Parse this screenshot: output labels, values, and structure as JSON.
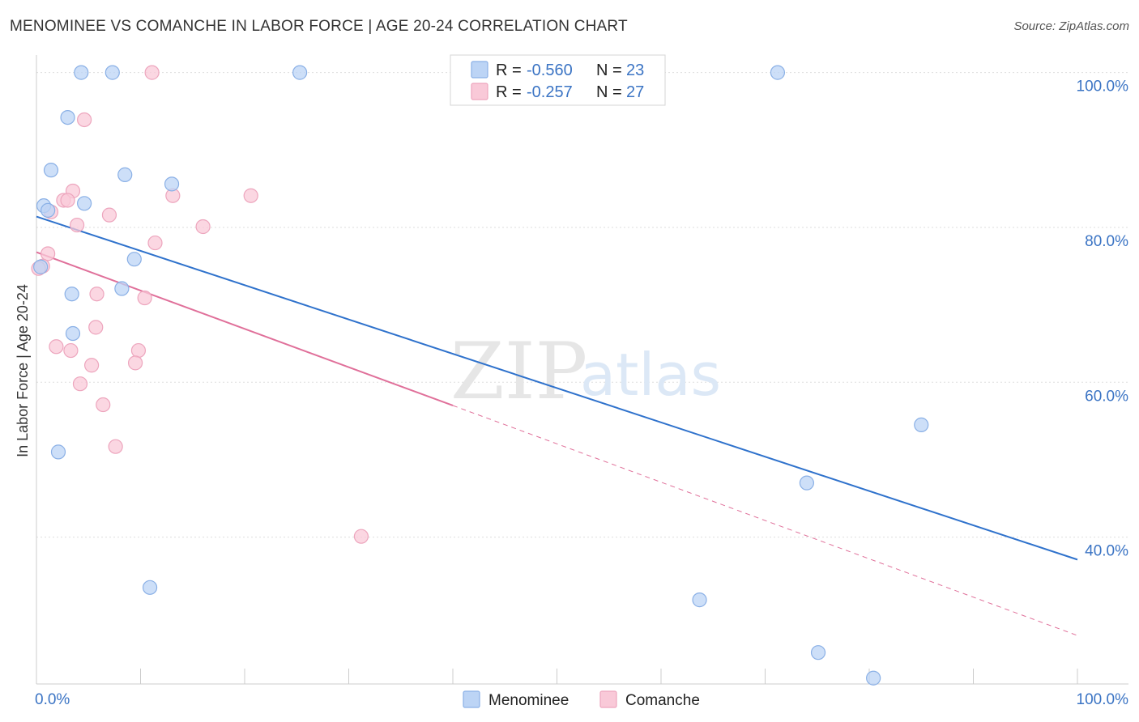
{
  "title": "MENOMINEE VS COMANCHE IN LABOR FORCE | AGE 20-24 CORRELATION CHART",
  "source": "Source: ZipAtlas.com",
  "watermark": {
    "zip": "ZIP",
    "atlas": "atlas"
  },
  "colors": {
    "menominee_fill": "#bcd4f5",
    "menominee_stroke": "#8ab0e6",
    "menominee_line": "#2f72cc",
    "comanche_fill": "#f9c9d8",
    "comanche_stroke": "#eda5bd",
    "comanche_line": "#e0709a",
    "grid": "#dddddd",
    "axis_text": "#3b74c4"
  },
  "legend": {
    "rows": [
      {
        "series": "Menominee",
        "r_label": "R = ",
        "r_value": "-0.560",
        "n_label": "N = ",
        "n_value": "23"
      },
      {
        "series": "Comanche",
        "r_label": "R = ",
        "r_value": "-0.257",
        "n_label": "N = ",
        "n_value": "27"
      }
    ]
  },
  "chart_data": {
    "type": "scatter",
    "title": "MENOMINEE VS COMANCHE IN LABOR FORCE | AGE 20-24 CORRELATION CHART",
    "xlabel": "",
    "ylabel": "In Labor Force | Age 20-24",
    "xlim": [
      0,
      100
    ],
    "ylim": [
      21,
      101
    ],
    "x_tick_labels": [
      "0.0%",
      "100.0%"
    ],
    "y_ticks": [
      40,
      60,
      80,
      100
    ],
    "y_tick_labels": [
      "40.0%",
      "60.0%",
      "80.0%",
      "100.0%"
    ],
    "grid": true,
    "legend_position": "top-center",
    "series": [
      {
        "name": "Menominee",
        "r": -0.56,
        "n": 23,
        "points": [
          [
            4.3,
            100
          ],
          [
            7.3,
            100
          ],
          [
            25.3,
            100
          ],
          [
            71.2,
            100
          ],
          [
            3.0,
            94.2
          ],
          [
            1.4,
            87.4
          ],
          [
            8.5,
            86.8
          ],
          [
            13.0,
            85.6
          ],
          [
            0.7,
            82.8
          ],
          [
            1.1,
            82.2
          ],
          [
            4.6,
            83.1
          ],
          [
            9.4,
            75.9
          ],
          [
            0.4,
            74.9
          ],
          [
            3.4,
            71.4
          ],
          [
            8.2,
            72.1
          ],
          [
            3.5,
            66.3
          ],
          [
            2.1,
            51.0
          ],
          [
            85.0,
            54.5
          ],
          [
            74.0,
            47.0
          ],
          [
            10.9,
            33.5
          ],
          [
            63.7,
            31.9
          ],
          [
            75.1,
            25.1
          ],
          [
            80.4,
            21.8
          ]
        ],
        "trend": {
          "x0": 0,
          "y0": 81.4,
          "x1": 100,
          "y1": 37.1,
          "dashed_from": null
        }
      },
      {
        "name": "Comanche",
        "r": -0.257,
        "n": 27,
        "points": [
          [
            11.1,
            100
          ],
          [
            4.6,
            93.9
          ],
          [
            3.5,
            84.7
          ],
          [
            2.6,
            83.5
          ],
          [
            3.0,
            83.5
          ],
          [
            1.4,
            82.0
          ],
          [
            7.0,
            81.6
          ],
          [
            13.1,
            84.1
          ],
          [
            20.6,
            84.1
          ],
          [
            3.9,
            80.3
          ],
          [
            16.0,
            80.1
          ],
          [
            11.4,
            78.0
          ],
          [
            1.1,
            76.6
          ],
          [
            0.6,
            75.0
          ],
          [
            0.2,
            74.7
          ],
          [
            5.8,
            71.4
          ],
          [
            10.4,
            70.9
          ],
          [
            5.7,
            67.1
          ],
          [
            1.9,
            64.6
          ],
          [
            3.3,
            64.1
          ],
          [
            9.8,
            64.1
          ],
          [
            5.3,
            62.2
          ],
          [
            9.5,
            62.5
          ],
          [
            4.2,
            59.8
          ],
          [
            6.4,
            57.1
          ],
          [
            7.6,
            51.7
          ],
          [
            31.2,
            40.1
          ]
        ],
        "trend": {
          "x0": 0,
          "y0": 76.8,
          "x1": 100,
          "y1": 27.3,
          "dashed_from": 40
        }
      }
    ]
  }
}
